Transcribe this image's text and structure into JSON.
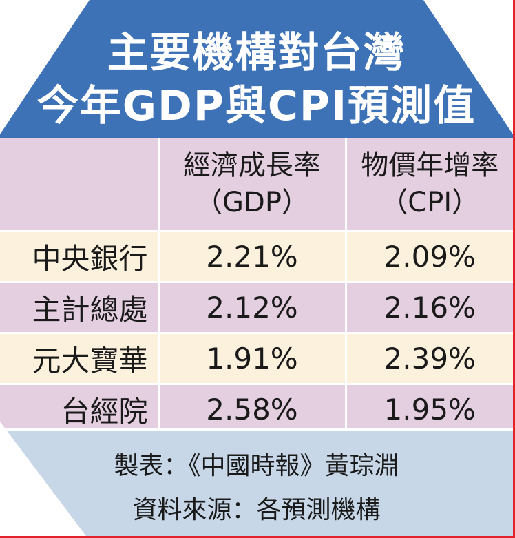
{
  "title": {
    "line1": "主要機構對台灣",
    "line2": "今年GDP與CPI預測值"
  },
  "table": {
    "columns": [
      {
        "label_line1": "",
        "label_line2": ""
      },
      {
        "label_line1": "經濟成長率",
        "label_line2": "（GDP）"
      },
      {
        "label_line1": "物價年增率",
        "label_line2": "（CPI）"
      }
    ],
    "rows": [
      {
        "agency": "中央銀行",
        "gdp": "2.21%",
        "cpi": "2.09%"
      },
      {
        "agency": "主計總處",
        "gdp": "2.12%",
        "cpi": "2.16%"
      },
      {
        "agency": "元大寶華",
        "gdp": "1.91%",
        "cpi": "2.39%"
      },
      {
        "agency": "台經院",
        "gdp": "2.58%",
        "cpi": "1.95%"
      }
    ]
  },
  "footer": {
    "credit": "製表：《中國時報》黃琮淵",
    "source": "資料來源：各預測機構"
  },
  "colors": {
    "header_blue": "#3d72b6",
    "row_pink": "#e4cfe0",
    "row_cream": "#fbf1dc",
    "footer_blue": "#c7d7e8",
    "border_red": "#e2232e"
  }
}
